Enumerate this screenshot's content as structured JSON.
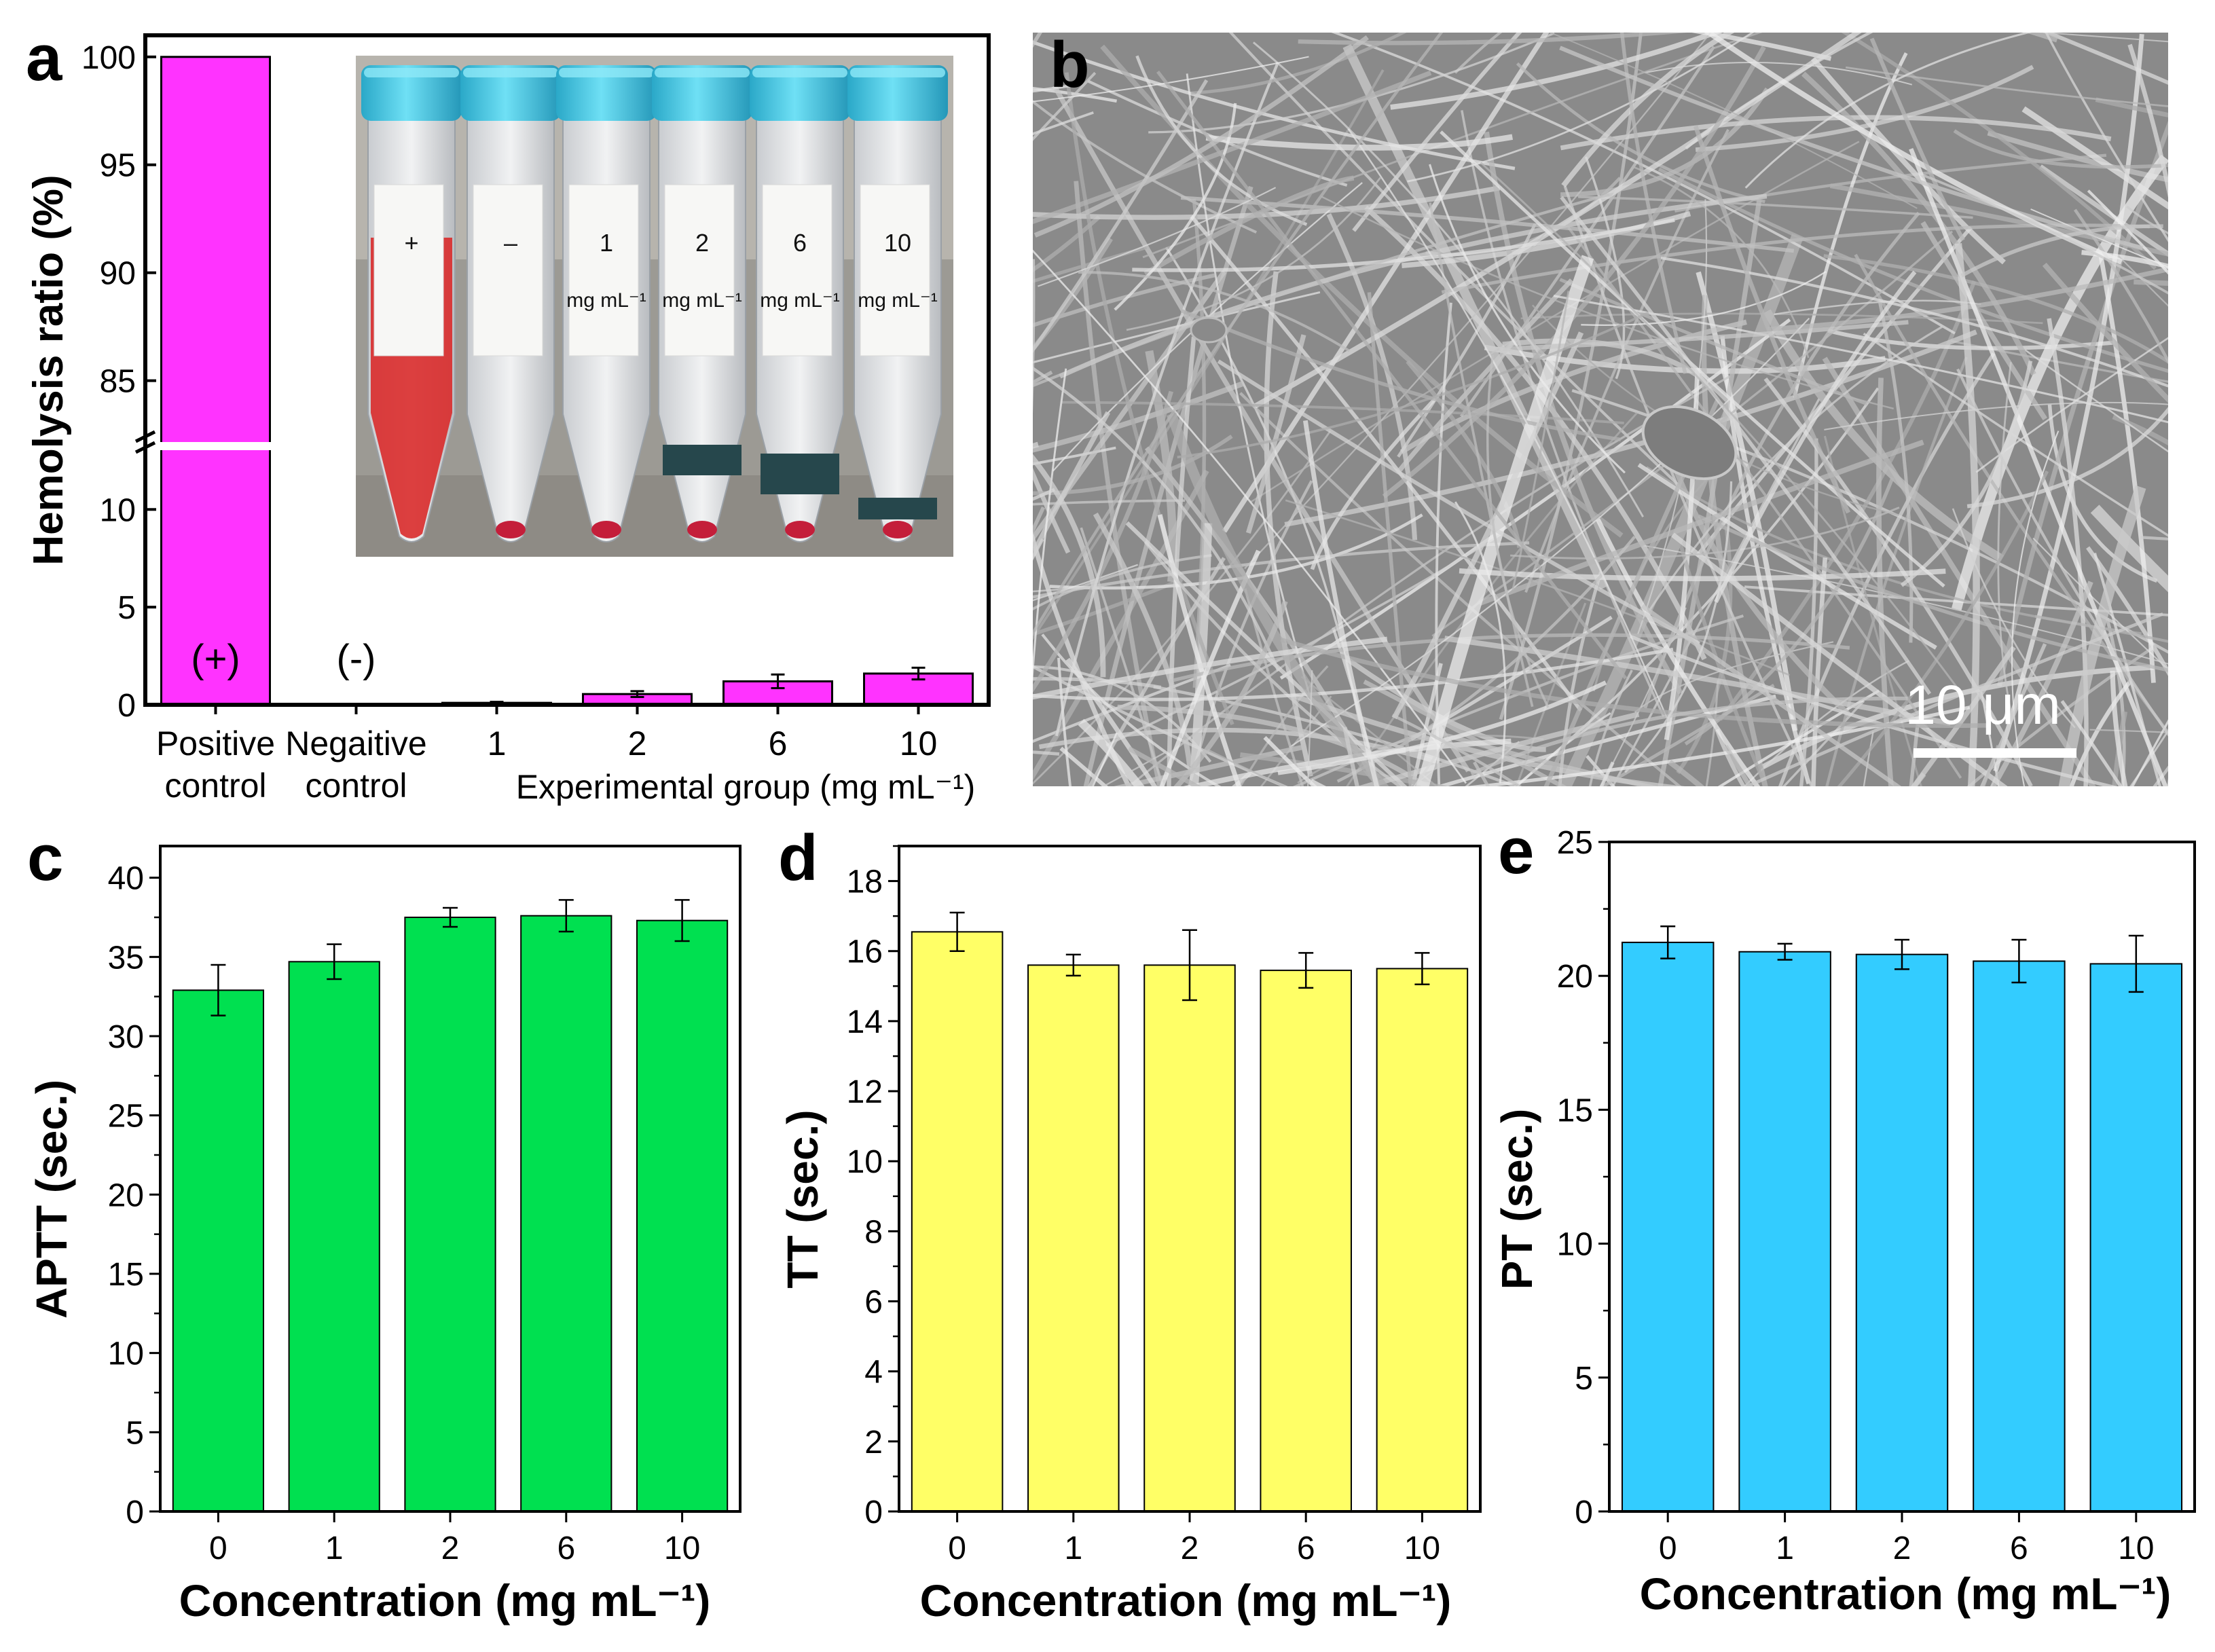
{
  "panel_labels": {
    "a": "a",
    "b": "b",
    "c": "c",
    "d": "d",
    "e": "e"
  },
  "colors": {
    "hemolysis_bar": "#ff33ff",
    "aptt_bar": "#00e050",
    "tt_bar": "#ffff66",
    "pt_bar": "#33ccff",
    "axis": "#000000",
    "sem_background": "#8a8a8a",
    "sem_fiber": "#d2d2d2",
    "tube_cap": "#3cc4e0",
    "blood_red": "#d92b2b"
  },
  "photo_inset": {
    "tubes": [
      {
        "label_line1": "+",
        "label_line2": ""
      },
      {
        "label_line1": "–",
        "label_line2": ""
      },
      {
        "label_line1": "1",
        "label_line2": "mg mL⁻¹"
      },
      {
        "label_line1": "2",
        "label_line2": "mg mL⁻¹"
      },
      {
        "label_line1": "6",
        "label_line2": "mg mL⁻¹"
      },
      {
        "label_line1": "10",
        "label_line2": "mg mL⁻¹"
      }
    ]
  },
  "sem_image": {
    "scale_bar_label": "10 μm",
    "icon": "sem-micrograph-nanofibers"
  },
  "chart_data": [
    {
      "panel": "a",
      "type": "bar",
      "ylabel": "Hemolysis ratio (%)",
      "xlabel": "Experimental group (mg mL⁻¹)",
      "categories": [
        "Positive control",
        "Negaitive control",
        "1",
        "2",
        "6",
        "10"
      ],
      "category_lines": [
        [
          "Positive",
          "control"
        ],
        [
          "Negaitive",
          "control"
        ],
        [
          "1"
        ],
        [
          "2"
        ],
        [
          "6"
        ],
        [
          "10"
        ]
      ],
      "bar_annotations": [
        "(+)",
        "(-)",
        "",
        "",
        "",
        ""
      ],
      "values": [
        100,
        0,
        0.1,
        0.55,
        1.2,
        1.6
      ],
      "errors": [
        0,
        0,
        0.05,
        0.15,
        0.35,
        0.3
      ],
      "axis_break": {
        "lower_range": [
          0,
          13
        ],
        "upper_range": [
          82,
          101
        ]
      },
      "yticks_lower": [
        0,
        5,
        10
      ],
      "yticks_upper": [
        85,
        90,
        95,
        100
      ]
    },
    {
      "panel": "c",
      "type": "bar",
      "ylabel": "APTT (sec.)",
      "xlabel": "Concentration (mg mL⁻¹)",
      "categories": [
        "0",
        "1",
        "2",
        "6",
        "10"
      ],
      "values": [
        32.9,
        34.7,
        37.5,
        37.6,
        37.3
      ],
      "errors": [
        1.6,
        1.1,
        0.6,
        1.0,
        1.3
      ],
      "ylim": [
        0,
        42
      ],
      "yticks": [
        0,
        5,
        10,
        15,
        20,
        25,
        30,
        35,
        40
      ]
    },
    {
      "panel": "d",
      "type": "bar",
      "ylabel": "TT (sec.)",
      "xlabel": "Concentration (mg mL⁻¹)",
      "categories": [
        "0",
        "1",
        "2",
        "6",
        "10"
      ],
      "values": [
        16.55,
        15.6,
        15.6,
        15.45,
        15.5
      ],
      "errors": [
        0.55,
        0.3,
        1.0,
        0.5,
        0.45
      ],
      "ylim": [
        0,
        19
      ],
      "yticks": [
        0,
        2,
        4,
        6,
        8,
        10,
        12,
        14,
        16,
        18
      ]
    },
    {
      "panel": "e",
      "type": "bar",
      "ylabel": "PT (sec.)",
      "xlabel": "Concentration (mg mL⁻¹)",
      "categories": [
        "0",
        "1",
        "2",
        "6",
        "10"
      ],
      "values": [
        21.25,
        20.9,
        20.8,
        20.55,
        20.45
      ],
      "errors": [
        0.6,
        0.3,
        0.55,
        0.8,
        1.05
      ],
      "ylim": [
        0,
        25
      ],
      "yticks": [
        0,
        5,
        10,
        15,
        20,
        25
      ]
    }
  ]
}
